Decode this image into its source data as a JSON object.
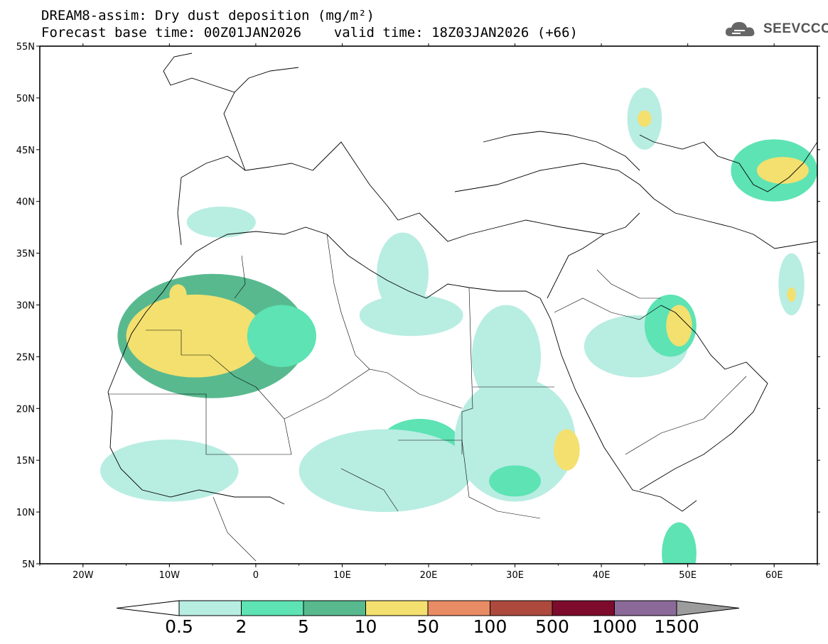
{
  "title": {
    "line1": "DREAM8-assim: Dry dust deposition (mg/m²)",
    "line2": "Forecast base time: 00Z01JAN2026    valid time: 18Z03JAN2026 (+66)"
  },
  "logo_text": "SEEVCCC",
  "axes": {
    "lon_range": [
      -25,
      65
    ],
    "lat_range": [
      5,
      55
    ],
    "lon_ticks": [
      {
        "v": -20,
        "label": "20W"
      },
      {
        "v": -10,
        "label": "10W"
      },
      {
        "v": 0,
        "label": "0"
      },
      {
        "v": 10,
        "label": "10E"
      },
      {
        "v": 20,
        "label": "20E"
      },
      {
        "v": 30,
        "label": "30E"
      },
      {
        "v": 40,
        "label": "40E"
      },
      {
        "v": 50,
        "label": "50E"
      },
      {
        "v": 60,
        "label": "60E"
      }
    ],
    "lat_ticks": [
      {
        "v": 55,
        "label": "55N"
      },
      {
        "v": 50,
        "label": "50N"
      },
      {
        "v": 45,
        "label": "45N"
      },
      {
        "v": 40,
        "label": "40N"
      },
      {
        "v": 35,
        "label": "35N"
      },
      {
        "v": 30,
        "label": "30N"
      },
      {
        "v": 25,
        "label": "25N"
      },
      {
        "v": 20,
        "label": "20N"
      },
      {
        "v": 15,
        "label": "15N"
      },
      {
        "v": 10,
        "label": "10N"
      },
      {
        "v": 5,
        "label": "5N"
      }
    ]
  },
  "colorbar": {
    "levels": [
      "0.5",
      "2",
      "5",
      "10",
      "50",
      "100",
      "500",
      "1000",
      "1500"
    ],
    "colors": [
      "#b8ede2",
      "#5de3b4",
      "#58b98f",
      "#f3e06f",
      "#e98b64",
      "#ad4a3d",
      "#7d0b2c",
      "#8b6a99"
    ],
    "under_color": "#ffffff",
    "over_color": "#9c9c9c"
  },
  "dust_regions": [
    {
      "name": "morocco-algeria",
      "lon": -5,
      "lat": 27,
      "rx": 11,
      "ry": 6,
      "level": 3
    },
    {
      "name": "west-sahara-core",
      "lon": -7,
      "lat": 27,
      "rx": 8,
      "ry": 4,
      "level": 4
    },
    {
      "name": "algeria-east",
      "lon": 3,
      "lat": 27,
      "rx": 4,
      "ry": 3,
      "level": 2
    },
    {
      "name": "libya-coast",
      "lon": 18,
      "lat": 29,
      "rx": 6,
      "ry": 2,
      "level": 1
    },
    {
      "name": "chad",
      "lon": 19,
      "lat": 16,
      "rx": 5,
      "ry": 3,
      "level": 2
    },
    {
      "name": "sahel-west",
      "lon": -10,
      "lat": 14,
      "rx": 8,
      "ry": 3,
      "level": 1
    },
    {
      "name": "sahel-central",
      "lon": 15,
      "lat": 14,
      "rx": 10,
      "ry": 4,
      "level": 1
    },
    {
      "name": "sudan",
      "lon": 30,
      "lat": 17,
      "rx": 7,
      "ry": 6,
      "level": 1
    },
    {
      "name": "sudan-core",
      "lon": 30,
      "lat": 13,
      "rx": 3,
      "ry": 1.5,
      "level": 2
    },
    {
      "name": "ethiopia",
      "lon": 36,
      "lat": 16,
      "rx": 1.5,
      "ry": 2,
      "level": 4
    },
    {
      "name": "egypt",
      "lon": 29,
      "lat": 25,
      "rx": 4,
      "ry": 5,
      "level": 1
    },
    {
      "name": "arabia",
      "lon": 44,
      "lat": 26,
      "rx": 6,
      "ry": 3,
      "level": 1
    },
    {
      "name": "kuwait",
      "lon": 48,
      "lat": 28,
      "rx": 3,
      "ry": 3,
      "level": 2
    },
    {
      "name": "gulf",
      "lon": 49,
      "lat": 28,
      "rx": 1.5,
      "ry": 2,
      "level": 4
    },
    {
      "name": "caspian",
      "lon": 60,
      "lat": 43,
      "rx": 5,
      "ry": 3,
      "level": 2
    },
    {
      "name": "aral",
      "lon": 61,
      "lat": 43,
      "rx": 3,
      "ry": 1.3,
      "level": 4
    },
    {
      "name": "ukraine",
      "lon": 45,
      "lat": 48,
      "rx": 2,
      "ry": 3,
      "level": 1
    },
    {
      "name": "ukraine-core",
      "lon": 45,
      "lat": 48,
      "rx": 0.8,
      "ry": 0.8,
      "level": 4
    },
    {
      "name": "iran-east",
      "lon": 62,
      "lat": 32,
      "rx": 1.5,
      "ry": 3,
      "level": 1
    },
    {
      "name": "iran-east-core",
      "lon": 62,
      "lat": 31,
      "rx": 0.5,
      "ry": 0.7,
      "level": 4
    },
    {
      "name": "somalia",
      "lon": 49,
      "lat": 6,
      "rx": 2,
      "ry": 3,
      "level": 2
    },
    {
      "name": "mediterranean",
      "lon": 17,
      "lat": 33,
      "rx": 3,
      "ry": 4,
      "level": 1
    },
    {
      "name": "iberia",
      "lon": -4,
      "lat": 38,
      "rx": 4,
      "ry": 1.5,
      "level": 1
    },
    {
      "name": "morocco-coast",
      "lon": -9,
      "lat": 31,
      "rx": 1,
      "ry": 1,
      "level": 4
    }
  ]
}
